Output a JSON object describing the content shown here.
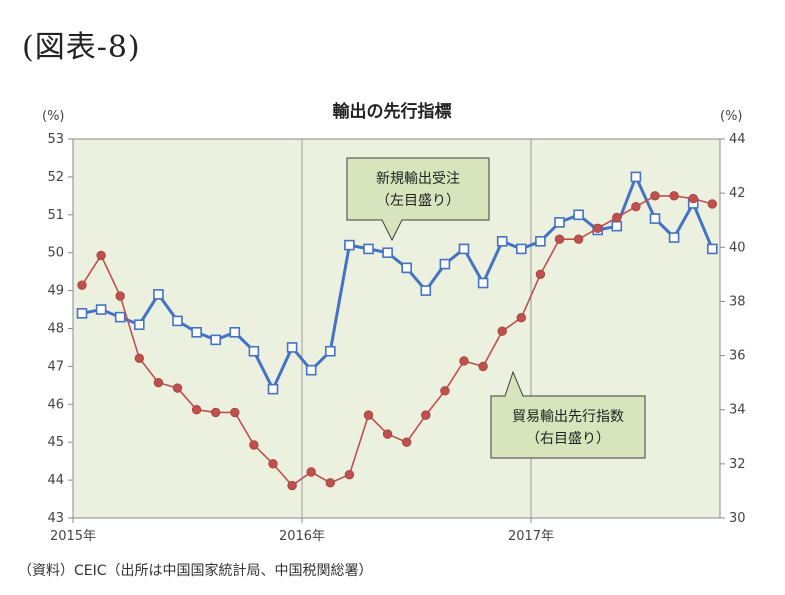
{
  "figure_label": "(図表-8)",
  "source_note": "（資料）CEIC（出所は中国国家統計局、中国税関総署）",
  "chart_data": {
    "type": "line",
    "title": "輸出の先行指標",
    "left_unit": "(%)",
    "right_unit": "(%)",
    "x_tick_labels": [
      "2015年",
      "2016年",
      "2017年"
    ],
    "left_axis": {
      "min": 43,
      "max": 53,
      "ticks": [
        43,
        44,
        45,
        46,
        47,
        48,
        49,
        50,
        51,
        52,
        53
      ]
    },
    "right_axis": {
      "min": 30,
      "max": 44,
      "ticks": [
        30,
        32,
        34,
        36,
        38,
        40,
        42,
        44
      ]
    },
    "series": [
      {
        "name": "新規輸出受注",
        "axis": "left",
        "color": "#4472c4",
        "marker": "square",
        "callout": [
          "新規輸出受注",
          "（左目盛り）"
        ],
        "values": [
          48.4,
          48.5,
          48.3,
          48.1,
          48.9,
          48.2,
          47.9,
          47.7,
          47.9,
          47.4,
          46.4,
          47.5,
          46.9,
          47.4,
          50.2,
          50.1,
          50.0,
          49.6,
          49.0,
          49.7,
          50.1,
          49.2,
          50.3,
          50.1,
          50.3,
          50.8,
          51.0,
          50.6,
          50.7,
          52.0,
          50.9,
          50.4,
          51.3,
          50.1
        ]
      },
      {
        "name": "貿易輸出先行指数",
        "axis": "right",
        "color": "#c0504d",
        "marker": "circle",
        "callout": [
          "貿易輸出先行指数",
          "（右目盛り）"
        ],
        "values": [
          38.6,
          39.7,
          38.2,
          35.9,
          35.0,
          34.8,
          34.0,
          33.9,
          33.9,
          32.7,
          32.0,
          31.2,
          31.7,
          31.3,
          31.6,
          33.8,
          33.1,
          32.8,
          33.8,
          34.7,
          35.8,
          35.6,
          36.9,
          37.4,
          39.0,
          40.3,
          40.3,
          40.7,
          41.1,
          41.5,
          41.9,
          41.9,
          41.8,
          41.6
        ]
      }
    ],
    "grid": "vertical lines at year boundaries",
    "legend": "callout boxes"
  }
}
